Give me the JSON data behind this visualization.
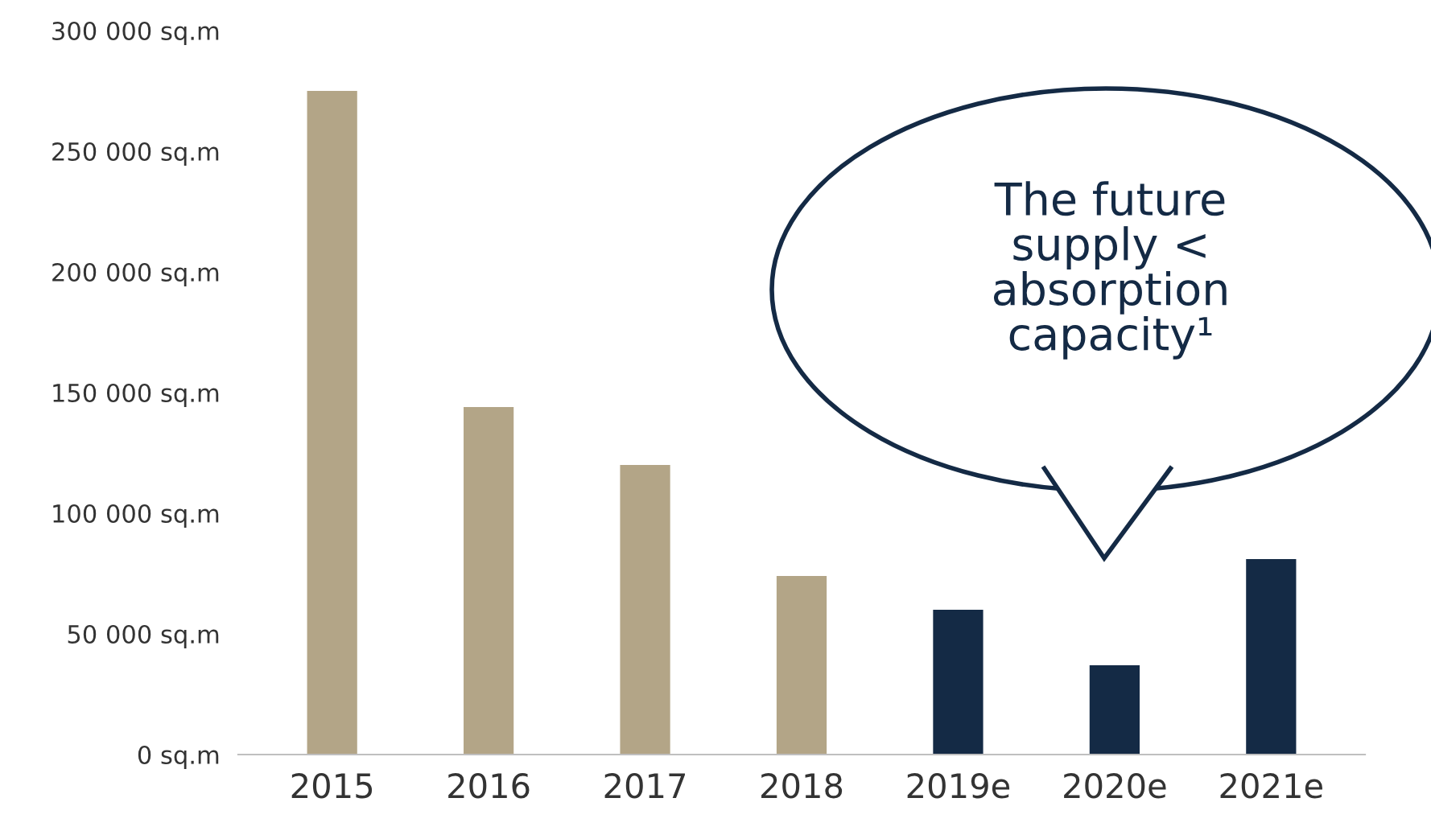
{
  "chart_data": {
    "type": "bar",
    "categories": [
      "2015",
      "2016",
      "2017",
      "2018",
      "2019e",
      "2020e",
      "2021e"
    ],
    "values": [
      275000,
      144000,
      120000,
      74000,
      60000,
      37000,
      81000
    ],
    "colors": [
      "#b3a587",
      "#b3a587",
      "#b3a587",
      "#b3a587",
      "#142a45",
      "#142a45",
      "#142a45"
    ],
    "ylim": [
      0,
      300000
    ],
    "yticks": [
      {
        "value": 0,
        "label": "0 sq.m"
      },
      {
        "value": 50000,
        "label": "50 000 sq.m"
      },
      {
        "value": 100000,
        "label": "100 000 sq.m"
      },
      {
        "value": 150000,
        "label": "150 000 sq.m"
      },
      {
        "value": 200000,
        "label": "200 000 sq.m"
      },
      {
        "value": 250000,
        "label": "250 000 sq.m"
      },
      {
        "value": 300000,
        "label": "300 000 sq.m"
      }
    ],
    "grid": false,
    "annotations": [
      "The future\nsupply <\nabsorption\ncapacity¹"
    ]
  }
}
